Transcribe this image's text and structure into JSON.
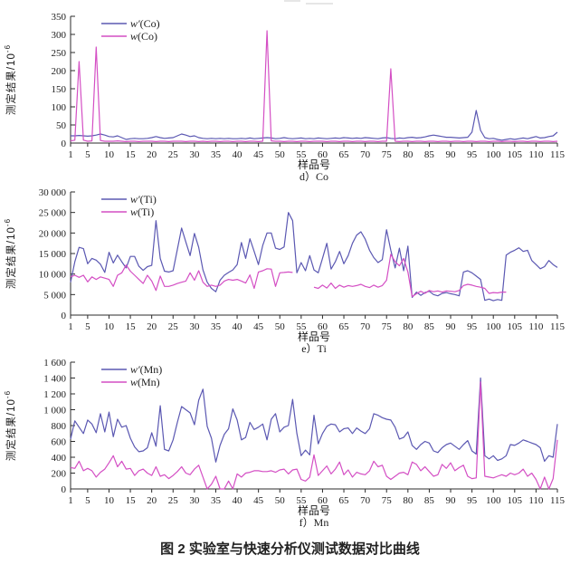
{
  "figure_caption": "图 2    实验室与快速分析仪测试数据对比曲线",
  "colors": {
    "series_lab": "#5b58b2",
    "series_rapid": "#d44fc4",
    "axis": "#2b2b2b"
  },
  "chart_data": [
    {
      "id": "co",
      "type": "line",
      "sublabel": "d）Co",
      "xlabel": "样品号",
      "ylabel": "测定结果/10",
      "ylabel_exp": "-6",
      "xlim": [
        1,
        115
      ],
      "x_ticks": [
        1,
        5,
        10,
        15,
        20,
        25,
        30,
        35,
        40,
        45,
        50,
        55,
        60,
        65,
        70,
        75,
        80,
        85,
        90,
        95,
        100,
        105,
        110,
        115
      ],
      "ylim": [
        0,
        350
      ],
      "y_ticks": [
        0,
        50,
        100,
        150,
        200,
        250,
        300,
        350
      ],
      "y_tick_labels": [
        "0",
        "50",
        "100",
        "150",
        "200",
        "250",
        "300",
        "350"
      ],
      "legend_position": "top-left",
      "grid": false,
      "series": [
        {
          "name": "w′(Co)",
          "color": "#5b58b2",
          "values": [
            20,
            20,
            21,
            20,
            19,
            20,
            22,
            25,
            22,
            18,
            17,
            20,
            15,
            10,
            12,
            13,
            12,
            12,
            13,
            15,
            18,
            15,
            13,
            14,
            15,
            20,
            25,
            22,
            18,
            20,
            15,
            13,
            12,
            13,
            12,
            13,
            12,
            13,
            12,
            12,
            13,
            12,
            14,
            12,
            13,
            14,
            15,
            14,
            12,
            13,
            15,
            13,
            12,
            13,
            14,
            12,
            13,
            12,
            14,
            13,
            12,
            13,
            14,
            13,
            15,
            14,
            13,
            14,
            13,
            15,
            14,
            13,
            12,
            14,
            15,
            13,
            12,
            14,
            13,
            15,
            16,
            14,
            15,
            17,
            20,
            22,
            20,
            18,
            16,
            16,
            15,
            14,
            15,
            16,
            30,
            90,
            35,
            15,
            12,
            13,
            10,
            8,
            10,
            12,
            10,
            12,
            14,
            12,
            15,
            18,
            14,
            15,
            18,
            20,
            30
          ]
        },
        {
          "name": "w(Co)",
          "color": "#d44fc4",
          "values": [
            6,
            8,
            225,
            8,
            5,
            6,
            265,
            7,
            5,
            5,
            5,
            6,
            5,
            4,
            5,
            5,
            4,
            5,
            5,
            5,
            4,
            5,
            5,
            4,
            5,
            5,
            5,
            4,
            5,
            5,
            4,
            5,
            4,
            5,
            5,
            4,
            5,
            5,
            4,
            5,
            5,
            4,
            5,
            5,
            4,
            5,
            310,
            6,
            5,
            5,
            4,
            5,
            5,
            4,
            5,
            5,
            4,
            5,
            5,
            5,
            4,
            5,
            5,
            4,
            5,
            5,
            4,
            5,
            5,
            4,
            5,
            5,
            4,
            5,
            5,
            205,
            5,
            4,
            5,
            5,
            4,
            5,
            5,
            4,
            5,
            5,
            4,
            5,
            5,
            4,
            5,
            5,
            4,
            5,
            5,
            4,
            5,
            5,
            4,
            5,
            5,
            4,
            5,
            5,
            4,
            5,
            5,
            4,
            5,
            5,
            4,
            5,
            5,
            4,
            5
          ]
        }
      ]
    },
    {
      "id": "ti",
      "type": "line",
      "sublabel": "e）Ti",
      "xlabel": "样品号",
      "ylabel": "测定结果/10",
      "ylabel_exp": "-6",
      "xlim": [
        1,
        115
      ],
      "x_ticks": [
        1,
        5,
        10,
        15,
        20,
        25,
        30,
        35,
        40,
        45,
        50,
        55,
        60,
        65,
        70,
        75,
        80,
        85,
        90,
        95,
        100,
        105,
        110,
        115
      ],
      "ylim": [
        0,
        30000
      ],
      "y_ticks": [
        0,
        5000,
        10000,
        15000,
        20000,
        25000,
        30000
      ],
      "y_tick_labels": [
        "0",
        "5 000",
        "10 000",
        "15 000",
        "20 000",
        "25 000",
        "30 000"
      ],
      "legend_position": "top-left",
      "grid": false,
      "series": [
        {
          "name": "w′(Ti)",
          "color": "#5b58b2",
          "values": [
            8000,
            13000,
            16500,
            16200,
            12500,
            13800,
            13400,
            12400,
            10400,
            15300,
            12700,
            14600,
            13000,
            11500,
            14300,
            14300,
            11900,
            10900,
            11800,
            12100,
            23000,
            13800,
            10700,
            10500,
            10800,
            16000,
            21200,
            17800,
            14500,
            19900,
            16500,
            11000,
            8000,
            6500,
            5700,
            8500,
            9700,
            10400,
            11000,
            12300,
            17700,
            13800,
            18600,
            15500,
            12300,
            17000,
            20000,
            20000,
            16300,
            16000,
            16600,
            25000,
            23000,
            10300,
            12800,
            10800,
            14500,
            11000,
            10300,
            13800,
            17500,
            11200,
            13000,
            15500,
            12500,
            14500,
            17500,
            19500,
            20300,
            18500,
            15800,
            14000,
            12800,
            13500,
            20800,
            15800,
            11500,
            16300,
            10800,
            16800,
            4300,
            5600,
            4800,
            5500,
            5800,
            5000,
            4700,
            5300,
            5500,
            5200,
            5000,
            4700,
            10500,
            10800,
            10300,
            9500,
            8700,
            3600,
            3900,
            3500,
            3800,
            3600,
            14600,
            15300,
            15800,
            16400,
            15500,
            15800,
            13300,
            12300,
            11300,
            11800,
            13300,
            12300,
            11600
          ]
        },
        {
          "name": "w(Ti)",
          "color": "#d44fc4",
          "values": [
            9300,
            9700,
            9200,
            9700,
            8100,
            9300,
            8700,
            9300,
            9000,
            8700,
            7000,
            9700,
            10300,
            12200,
            10700,
            9700,
            8700,
            7700,
            9700,
            8300,
            6000,
            9500,
            7000,
            7000,
            7300,
            7700,
            8000,
            8300,
            10300,
            8500,
            10800,
            8000,
            7000,
            7300,
            7000,
            7300,
            8300,
            8700,
            8500,
            8700,
            8300,
            7800,
            9800,
            6500,
            10500,
            10800,
            11300,
            11200,
            7000,
            10300,
            10400,
            10500,
            10400,
            null,
            null,
            null,
            null,
            6800,
            6500,
            7300,
            6600,
            7800,
            6500,
            7300,
            6800,
            7200,
            7000,
            7200,
            7500,
            7000,
            6700,
            7300,
            6800,
            7200,
            8500,
            14800,
            13000,
            12000,
            13800,
            10500,
            4500,
            5200,
            5800,
            5300,
            6000,
            5700,
            5900,
            5600,
            5900,
            5800,
            5700,
            6000,
            7200,
            7500,
            7300,
            7000,
            6800,
            6500,
            5300,
            5500,
            5400,
            5600,
            5600,
            null,
            null,
            null,
            null,
            null,
            null,
            null,
            null,
            null,
            null,
            null,
            null
          ]
        }
      ]
    },
    {
      "id": "mn",
      "type": "line",
      "sublabel": "f）Mn",
      "xlabel": "样品号",
      "ylabel": "测定结果/10",
      "ylabel_exp": "-6",
      "xlim": [
        1,
        115
      ],
      "x_ticks": [
        1,
        5,
        10,
        15,
        20,
        25,
        30,
        35,
        40,
        45,
        50,
        55,
        60,
        65,
        70,
        75,
        80,
        85,
        90,
        95,
        100,
        105,
        110,
        115
      ],
      "ylim": [
        0,
        1600
      ],
      "y_ticks": [
        0,
        200,
        400,
        600,
        800,
        1000,
        1200,
        1400,
        1600
      ],
      "y_tick_labels": [
        "0",
        "200",
        "400",
        "600",
        "800",
        "1 000",
        "1 200",
        "1 400",
        "1 600"
      ],
      "legend_position": "top-left",
      "grid": false,
      "series": [
        {
          "name": "w′(Mn)",
          "color": "#5b58b2",
          "values": [
            630,
            860,
            780,
            700,
            870,
            820,
            710,
            950,
            720,
            970,
            660,
            880,
            780,
            800,
            640,
            530,
            470,
            480,
            520,
            710,
            540,
            1050,
            500,
            480,
            620,
            840,
            1040,
            1000,
            960,
            810,
            1120,
            1260,
            790,
            640,
            340,
            550,
            690,
            760,
            1010,
            870,
            620,
            650,
            840,
            750,
            780,
            820,
            620,
            880,
            950,
            720,
            780,
            800,
            1130,
            700,
            420,
            490,
            430,
            930,
            570,
            700,
            790,
            820,
            810,
            720,
            760,
            770,
            700,
            770,
            730,
            700,
            760,
            950,
            930,
            900,
            880,
            870,
            780,
            630,
            650,
            720,
            550,
            500,
            560,
            600,
            580,
            480,
            460,
            520,
            560,
            580,
            540,
            500,
            560,
            610,
            480,
            440,
            1400,
            420,
            380,
            420,
            360,
            380,
            420,
            560,
            550,
            580,
            620,
            600,
            580,
            560,
            520,
            350,
            420,
            400,
            820
          ]
        },
        {
          "name": "w(Mn)",
          "color": "#d44fc4",
          "values": [
            270,
            260,
            350,
            230,
            260,
            230,
            150,
            210,
            250,
            330,
            420,
            280,
            350,
            250,
            260,
            170,
            230,
            250,
            200,
            170,
            280,
            160,
            180,
            130,
            170,
            220,
            280,
            200,
            180,
            250,
            300,
            150,
            0,
            60,
            160,
            0,
            0,
            100,
            0,
            190,
            150,
            200,
            210,
            230,
            230,
            220,
            220,
            230,
            210,
            240,
            250,
            190,
            240,
            250,
            120,
            100,
            150,
            430,
            170,
            230,
            290,
            190,
            250,
            340,
            180,
            240,
            150,
            210,
            190,
            180,
            230,
            350,
            280,
            300,
            160,
            120,
            160,
            200,
            210,
            180,
            340,
            310,
            230,
            280,
            220,
            160,
            180,
            310,
            260,
            330,
            230,
            270,
            300,
            160,
            130,
            140,
            1350,
            160,
            150,
            140,
            160,
            180,
            160,
            200,
            180,
            200,
            250,
            160,
            200,
            120,
            0,
            150,
            0,
            130,
            620
          ]
        }
      ]
    }
  ]
}
